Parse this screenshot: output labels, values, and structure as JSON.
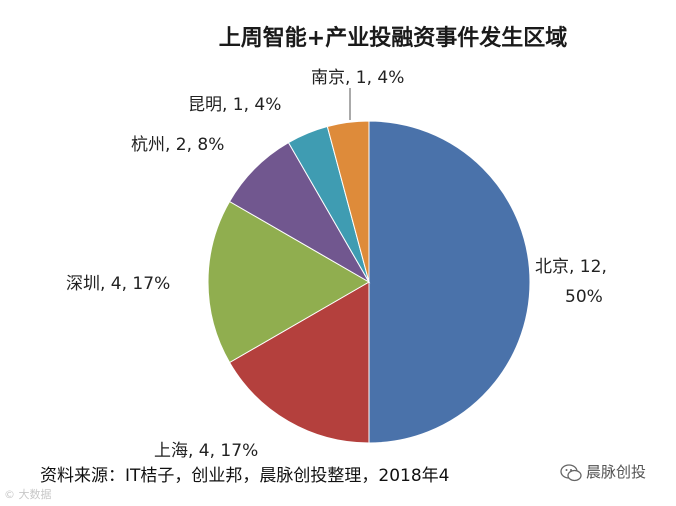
{
  "chart_data": {
    "type": "pie",
    "title": "上周智能+产业投融资事件发生区域",
    "slices": [
      {
        "name": "北京",
        "value": 12,
        "percent": "50%",
        "label_lines": [
          "北京, 12,",
          "50%"
        ],
        "color": "#4a72aa"
      },
      {
        "name": "上海",
        "value": 4,
        "percent": "17%",
        "label_lines": [
          "上海, 4, 17%"
        ],
        "color": "#b4403d"
      },
      {
        "name": "深圳",
        "value": 4,
        "percent": "17%",
        "label_lines": [
          "深圳, 4, 17%"
        ],
        "color": "#90ae4f"
      },
      {
        "name": "杭州",
        "value": 2,
        "percent": "8%",
        "label_lines": [
          "杭州, 2, 8%"
        ],
        "color": "#71578f"
      },
      {
        "name": "昆明",
        "value": 1,
        "percent": "4%",
        "label_lines": [
          "昆明, 1, 4%"
        ],
        "color": "#3f9cb2"
      },
      {
        "name": "南京",
        "value": 1,
        "percent": "4%",
        "label_lines": [
          "南京, 1, 4%"
        ],
        "color": "#de8b3a"
      }
    ]
  },
  "footer": {
    "source": "资料来源：IT桔子，创业邦，晨脉创投整理，2018年4",
    "brand": "晨脉创投",
    "brand_icon": "wechat-icon",
    "watermark": "© 大数据"
  }
}
